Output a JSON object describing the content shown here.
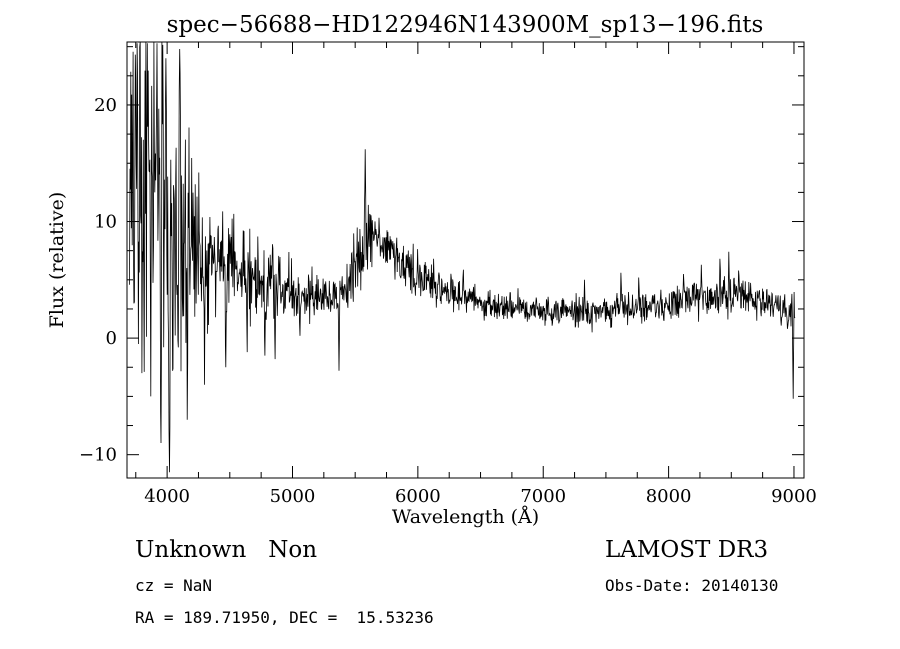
{
  "window": {
    "background": "#ffffff",
    "foreground": "#000000"
  },
  "chart_data": {
    "type": "line",
    "title": "spec−56688−HD122946N143900M_sp13−196.fits",
    "xlabel": "Wavelength (Å)",
    "ylabel": "Flux (relative)",
    "xlim": [
      3680,
      9080
    ],
    "ylim": [
      -12,
      25.4
    ],
    "xticks": [
      4000,
      5000,
      6000,
      7000,
      8000,
      9000
    ],
    "xtick_labels": [
      "4000",
      "5000",
      "6000",
      "7000",
      "8000",
      "9000"
    ],
    "yticks": [
      -10,
      0,
      10,
      20
    ],
    "ytick_labels": [
      "−10",
      "0",
      "10",
      "20"
    ],
    "x_minor_step": 250,
    "y_minor_step": 2.5,
    "grid": false,
    "legend": "none",
    "line_color": "#000000",
    "series_name": "spectrum",
    "continuum": [
      [
        3700,
        12.0
      ],
      [
        3760,
        14.0
      ],
      [
        3820,
        15.0
      ],
      [
        3880,
        14.0
      ],
      [
        3940,
        12.5
      ],
      [
        4000,
        11.0
      ],
      [
        4060,
        10.0
      ],
      [
        4120,
        9.2
      ],
      [
        4200,
        8.3
      ],
      [
        4300,
        7.3
      ],
      [
        4400,
        6.8
      ],
      [
        4500,
        6.3
      ],
      [
        4600,
        5.8
      ],
      [
        4700,
        5.3
      ],
      [
        4800,
        4.9
      ],
      [
        4900,
        4.5
      ],
      [
        5000,
        4.1
      ],
      [
        5100,
        3.9
      ],
      [
        5200,
        3.7
      ],
      [
        5300,
        3.6
      ],
      [
        5400,
        3.9
      ],
      [
        5480,
        5.0
      ],
      [
        5540,
        7.0
      ],
      [
        5600,
        8.8
      ],
      [
        5660,
        9.0
      ],
      [
        5720,
        8.2
      ],
      [
        5800,
        7.2
      ],
      [
        5900,
        6.2
      ],
      [
        6000,
        5.4
      ],
      [
        6100,
        4.8
      ],
      [
        6200,
        4.3
      ],
      [
        6300,
        3.8
      ],
      [
        6400,
        3.4
      ],
      [
        6500,
        3.1
      ],
      [
        6600,
        2.9
      ],
      [
        6700,
        2.7
      ],
      [
        6800,
        2.6
      ],
      [
        6900,
        2.5
      ],
      [
        7000,
        2.4
      ],
      [
        7100,
        2.35
      ],
      [
        7200,
        2.3
      ],
      [
        7300,
        2.35
      ],
      [
        7400,
        2.3
      ],
      [
        7500,
        2.4
      ],
      [
        7600,
        2.5
      ],
      [
        7700,
        2.6
      ],
      [
        7800,
        2.7
      ],
      [
        7900,
        2.8
      ],
      [
        8000,
        2.9
      ],
      [
        8100,
        3.1
      ],
      [
        8200,
        3.3
      ],
      [
        8300,
        3.4
      ],
      [
        8400,
        3.5
      ],
      [
        8500,
        3.5
      ],
      [
        8600,
        3.4
      ],
      [
        8700,
        3.2
      ],
      [
        8800,
        2.9
      ],
      [
        8870,
        2.6
      ],
      [
        8930,
        2.2
      ],
      [
        9008,
        2.0
      ]
    ],
    "noise_amplitude": [
      [
        3700,
        8.0
      ],
      [
        3780,
        9.5
      ],
      [
        3860,
        9.5
      ],
      [
        3940,
        8.5
      ],
      [
        4020,
        7.0
      ],
      [
        4100,
        5.5
      ],
      [
        4200,
        4.0
      ],
      [
        4300,
        3.0
      ],
      [
        4400,
        2.5
      ],
      [
        4500,
        2.2
      ],
      [
        4600,
        2.0
      ],
      [
        4700,
        1.8
      ],
      [
        4800,
        1.6
      ],
      [
        4900,
        1.4
      ],
      [
        5000,
        1.2
      ],
      [
        5200,
        1.0
      ],
      [
        5400,
        0.9
      ],
      [
        5560,
        1.4
      ],
      [
        5700,
        1.2
      ],
      [
        5900,
        1.0
      ],
      [
        6100,
        0.9
      ],
      [
        6300,
        0.8
      ],
      [
        6500,
        0.7
      ],
      [
        6800,
        0.6
      ],
      [
        7100,
        0.55
      ],
      [
        7400,
        0.6
      ],
      [
        7600,
        0.75
      ],
      [
        7800,
        0.7
      ],
      [
        8000,
        0.7
      ],
      [
        8200,
        0.8
      ],
      [
        8400,
        0.85
      ],
      [
        8600,
        0.8
      ],
      [
        8800,
        0.8
      ],
      [
        9008,
        1.0
      ]
    ],
    "spikes": [
      [
        3760,
        25.3
      ],
      [
        3800,
        -3.0
      ],
      [
        3840,
        25.3
      ],
      [
        3870,
        -5.0
      ],
      [
        3920,
        25.3
      ],
      [
        3950,
        -9.0
      ],
      [
        3990,
        24.0
      ],
      [
        4020,
        -11.5
      ],
      [
        4100,
        24.8
      ],
      [
        4160,
        -7.0
      ],
      [
        4300,
        -4.0
      ],
      [
        4470,
        -2.5
      ],
      [
        4640,
        -1.2
      ],
      [
        4780,
        -1.5
      ],
      [
        4860,
        -1.8
      ],
      [
        5060,
        0.2
      ],
      [
        5370,
        -2.8
      ],
      [
        5580,
        16.2
      ],
      [
        7330,
        5.0
      ],
      [
        7620,
        5.6
      ],
      [
        7760,
        5.2
      ],
      [
        8120,
        5.5
      ],
      [
        8260,
        6.3
      ],
      [
        8410,
        6.8
      ],
      [
        8480,
        7.4
      ],
      [
        8560,
        5.8
      ],
      [
        8995,
        -5.2
      ]
    ]
  },
  "annotations": {
    "class_label": "Unknown   Non",
    "survey": "LAMOST DR3",
    "cz": "cz = NaN",
    "obs_date": "Obs-Date: 20140130",
    "coords": "RA = 189.71950, DEC =  15.53236"
  }
}
